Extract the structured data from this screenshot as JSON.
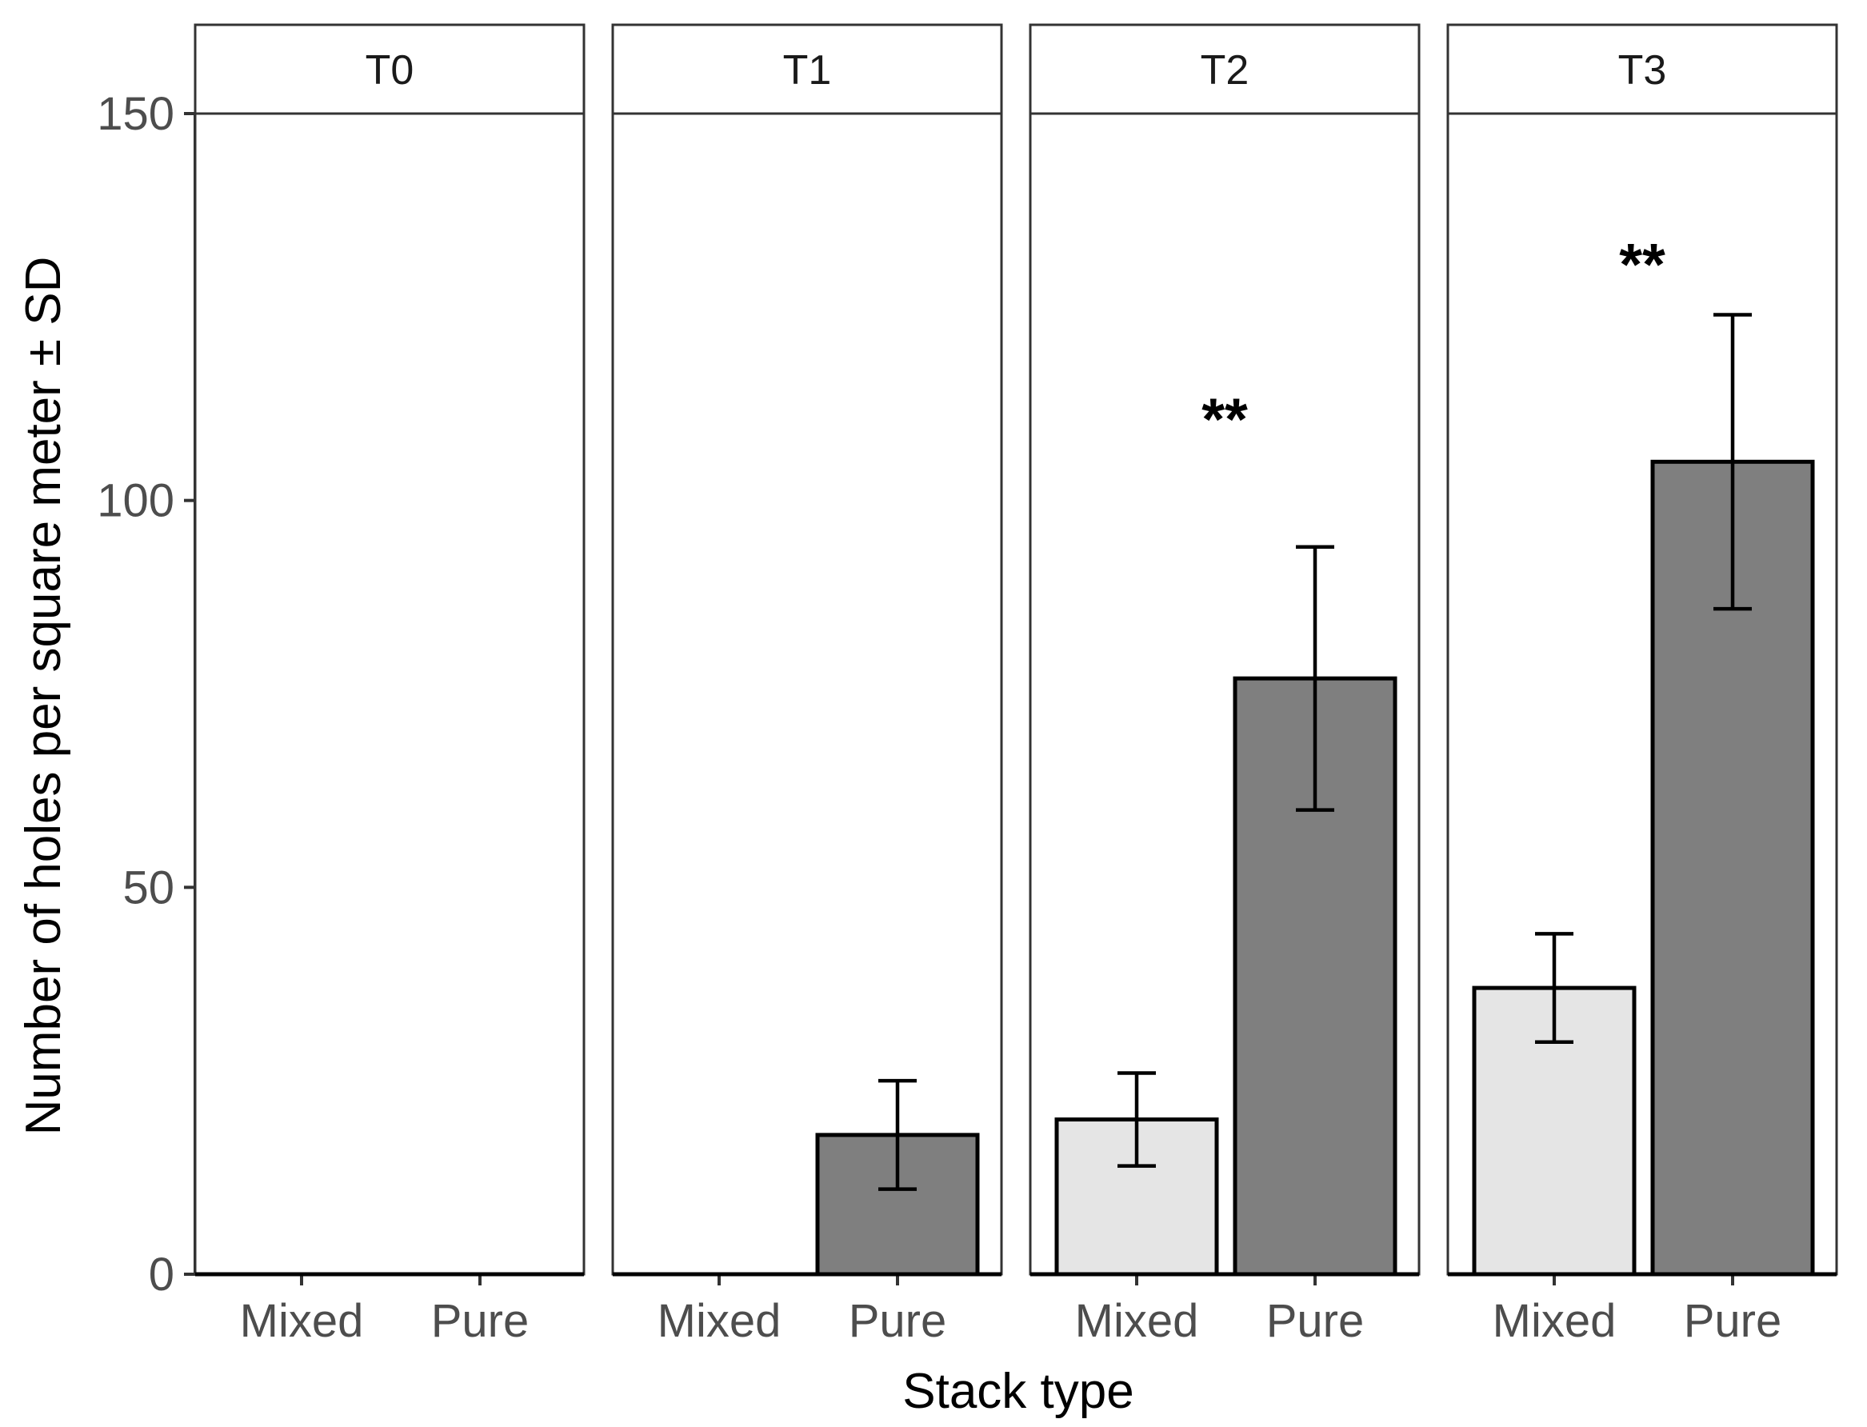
{
  "chart_data": {
    "type": "bar",
    "facet_by": "time",
    "xlabel": "Stack type",
    "ylabel": "Number of holes per square meter ± SD",
    "ylim": [
      0,
      150
    ],
    "yticks": [
      "0",
      "50",
      "100",
      "150"
    ],
    "categories": [
      "Mixed",
      "Pure"
    ],
    "colors": {
      "Mixed": "#e5e5e5",
      "Pure": "#7f7f7f",
      "outline": "#000000",
      "frame": "#333333"
    },
    "panels": [
      {
        "label": "T0",
        "bars": [
          {
            "category": "Mixed",
            "value": 0,
            "sd": 0
          },
          {
            "category": "Pure",
            "value": 0,
            "sd": 0
          }
        ],
        "significance": ""
      },
      {
        "label": "T1",
        "bars": [
          {
            "category": "Mixed",
            "value": 0,
            "sd": 0
          },
          {
            "category": "Pure",
            "value": 18,
            "sd": 7
          }
        ],
        "significance": ""
      },
      {
        "label": "T2",
        "bars": [
          {
            "category": "Mixed",
            "value": 20,
            "sd": 6
          },
          {
            "category": "Pure",
            "value": 77,
            "sd": 17
          }
        ],
        "significance": "**",
        "significance_y": 111
      },
      {
        "label": "T3",
        "bars": [
          {
            "category": "Mixed",
            "value": 37,
            "sd": 7
          },
          {
            "category": "Pure",
            "value": 105,
            "sd": 19
          }
        ],
        "significance": "**",
        "significance_y": 131
      }
    ]
  }
}
